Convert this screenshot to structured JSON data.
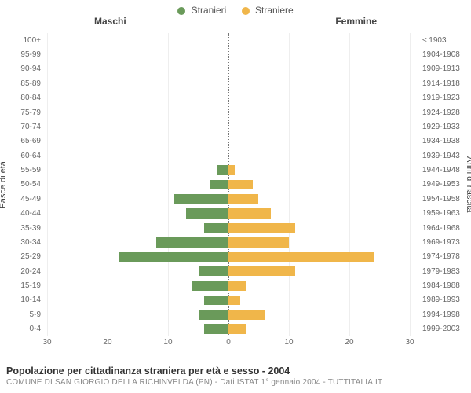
{
  "legend": {
    "male": {
      "label": "Stranieri",
      "color": "#6a9a5a"
    },
    "female": {
      "label": "Straniere",
      "color": "#f0b64a"
    }
  },
  "header": {
    "male": "Maschi",
    "female": "Femmine"
  },
  "axis_titles": {
    "left": "Fasce di età",
    "right": "Anni di nascita"
  },
  "chart": {
    "type": "population-pyramid",
    "x_max": 30,
    "x_ticks": [
      30,
      20,
      10,
      0,
      10,
      20,
      30
    ],
    "grid_color": "#eeeeee",
    "center_line_color": "#777777",
    "background_color": "#ffffff",
    "bar_colors": {
      "male": "#6a9a5a",
      "female": "#f0b64a"
    },
    "rows": [
      {
        "age": "100+",
        "birth": "≤ 1903",
        "m": 0,
        "f": 0
      },
      {
        "age": "95-99",
        "birth": "1904-1908",
        "m": 0,
        "f": 0
      },
      {
        "age": "90-94",
        "birth": "1909-1913",
        "m": 0,
        "f": 0
      },
      {
        "age": "85-89",
        "birth": "1914-1918",
        "m": 0,
        "f": 0
      },
      {
        "age": "80-84",
        "birth": "1919-1923",
        "m": 0,
        "f": 0
      },
      {
        "age": "75-79",
        "birth": "1924-1928",
        "m": 0,
        "f": 0
      },
      {
        "age": "70-74",
        "birth": "1929-1933",
        "m": 0,
        "f": 0
      },
      {
        "age": "65-69",
        "birth": "1934-1938",
        "m": 0,
        "f": 0
      },
      {
        "age": "60-64",
        "birth": "1939-1943",
        "m": 0,
        "f": 0
      },
      {
        "age": "55-59",
        "birth": "1944-1948",
        "m": 2,
        "f": 1
      },
      {
        "age": "50-54",
        "birth": "1949-1953",
        "m": 3,
        "f": 4
      },
      {
        "age": "45-49",
        "birth": "1954-1958",
        "m": 9,
        "f": 5
      },
      {
        "age": "40-44",
        "birth": "1959-1963",
        "m": 7,
        "f": 7
      },
      {
        "age": "35-39",
        "birth": "1964-1968",
        "m": 4,
        "f": 11
      },
      {
        "age": "30-34",
        "birth": "1969-1973",
        "m": 12,
        "f": 10
      },
      {
        "age": "25-29",
        "birth": "1974-1978",
        "m": 18,
        "f": 24
      },
      {
        "age": "20-24",
        "birth": "1979-1983",
        "m": 5,
        "f": 11
      },
      {
        "age": "15-19",
        "birth": "1984-1988",
        "m": 6,
        "f": 3
      },
      {
        "age": "10-14",
        "birth": "1989-1993",
        "m": 4,
        "f": 2
      },
      {
        "age": "5-9",
        "birth": "1994-1998",
        "m": 5,
        "f": 6
      },
      {
        "age": "0-4",
        "birth": "1999-2003",
        "m": 4,
        "f": 3
      }
    ]
  },
  "footer": {
    "title": "Popolazione per cittadinanza straniera per età e sesso - 2004",
    "subtitle": "COMUNE DI SAN GIORGIO DELLA RICHINVELDA (PN) - Dati ISTAT 1° gennaio 2004 - TUTTITALIA.IT"
  }
}
